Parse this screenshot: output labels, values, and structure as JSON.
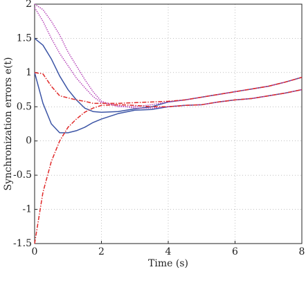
{
  "chart_data": {
    "type": "line",
    "x_label": "Time (s)",
    "y_label": "Synchronization errors e(t)",
    "x": [
      0,
      0.25,
      0.5,
      0.75,
      1,
      1.25,
      1.5,
      1.75,
      2,
      2.5,
      3,
      3.5,
      4,
      4.5,
      5,
      5.5,
      6,
      6.5,
      7,
      7.5,
      8
    ],
    "series": [
      {
        "color": "#3b54a5",
        "dash": "solid",
        "values": [
          1.5,
          1.4,
          1.2,
          0.95,
          0.75,
          0.6,
          0.48,
          0.43,
          0.42,
          0.43,
          0.47,
          0.5,
          0.57,
          0.6,
          0.64,
          0.68,
          0.72,
          0.76,
          0.8,
          0.86,
          0.93
        ]
      },
      {
        "color": "#3b54a5",
        "dash": "solid",
        "values": [
          1.0,
          0.55,
          0.25,
          0.12,
          0.12,
          0.15,
          0.2,
          0.27,
          0.32,
          0.4,
          0.45,
          0.46,
          0.5,
          0.52,
          0.53,
          0.57,
          0.6,
          0.62,
          0.66,
          0.7,
          0.75
        ]
      },
      {
        "color": "#b544b8",
        "dash": "dotted",
        "values": [
          2.0,
          1.92,
          1.75,
          1.55,
          1.3,
          1.1,
          0.9,
          0.72,
          0.58,
          0.5,
          0.5,
          0.53,
          0.57,
          0.6,
          0.64,
          0.68,
          0.72,
          0.76,
          0.8,
          0.86,
          0.93
        ]
      },
      {
        "color": "#b544b8",
        "dash": "dotted",
        "values": [
          1.95,
          1.75,
          1.5,
          1.28,
          1.1,
          0.92,
          0.78,
          0.65,
          0.56,
          0.52,
          0.48,
          0.48,
          0.5,
          0.52,
          0.53,
          0.57,
          0.6,
          0.62,
          0.66,
          0.7,
          0.75
        ]
      },
      {
        "color": "#e02828",
        "dash": "dashdot",
        "values": [
          1.0,
          0.98,
          0.8,
          0.66,
          0.63,
          0.6,
          0.58,
          0.55,
          0.55,
          0.55,
          0.56,
          0.57,
          0.58,
          0.6,
          0.64,
          0.68,
          0.72,
          0.76,
          0.8,
          0.86,
          0.93
        ]
      },
      {
        "color": "#e02828",
        "dash": "dashdot",
        "values": [
          -1.5,
          -0.75,
          -0.3,
          0.0,
          0.2,
          0.32,
          0.42,
          0.48,
          0.52,
          0.53,
          0.52,
          0.5,
          0.5,
          0.52,
          0.53,
          0.57,
          0.6,
          0.62,
          0.66,
          0.7,
          0.75
        ]
      }
    ],
    "xlim": [
      0,
      8
    ],
    "xticks": [
      0,
      2,
      4,
      6,
      8
    ],
    "ylim": [
      -1.5,
      2
    ],
    "yticks": [
      -1.5,
      -1,
      -0.5,
      0,
      0.5,
      1,
      1.5,
      2
    ],
    "grid": true
  }
}
